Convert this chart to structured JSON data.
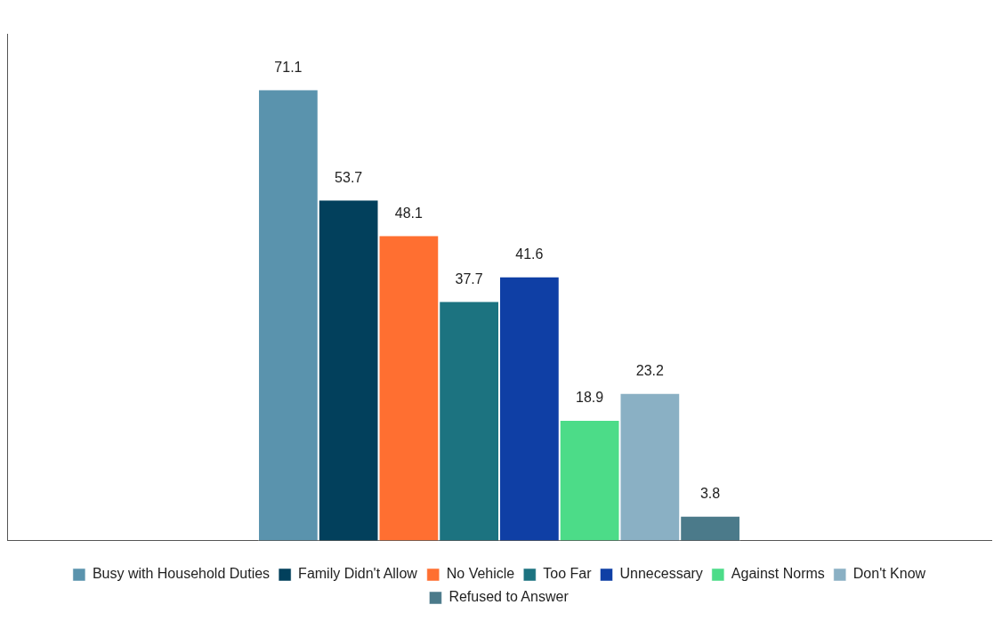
{
  "chart_data": {
    "type": "bar",
    "categories": [
      null
    ],
    "series": [
      {
        "name": "Busy with Household Duties",
        "color": "#5a93ad",
        "values": [
          71.1
        ]
      },
      {
        "name": "Family Didn't Allow",
        "color": "#02405c",
        "values": [
          53.7
        ]
      },
      {
        "name": "No Vehicle",
        "color": "#ff6f31",
        "values": [
          48.1
        ]
      },
      {
        "name": "Too Far",
        "color": "#1c7380",
        "values": [
          37.7
        ]
      },
      {
        "name": "Unnecessary",
        "color": "#0f3fa5",
        "values": [
          41.6
        ]
      },
      {
        "name": "Against Norms",
        "color": "#4cdc88",
        "values": [
          18.9
        ]
      },
      {
        "name": "Don't Know",
        "color": "#8ab0c4",
        "values": [
          23.2
        ]
      },
      {
        "name": "Refused to Answer",
        "color": "#4b7a8a",
        "values": [
          3.8
        ]
      }
    ],
    "data_labels": true,
    "legend": "bottom",
    "grid": false
  }
}
